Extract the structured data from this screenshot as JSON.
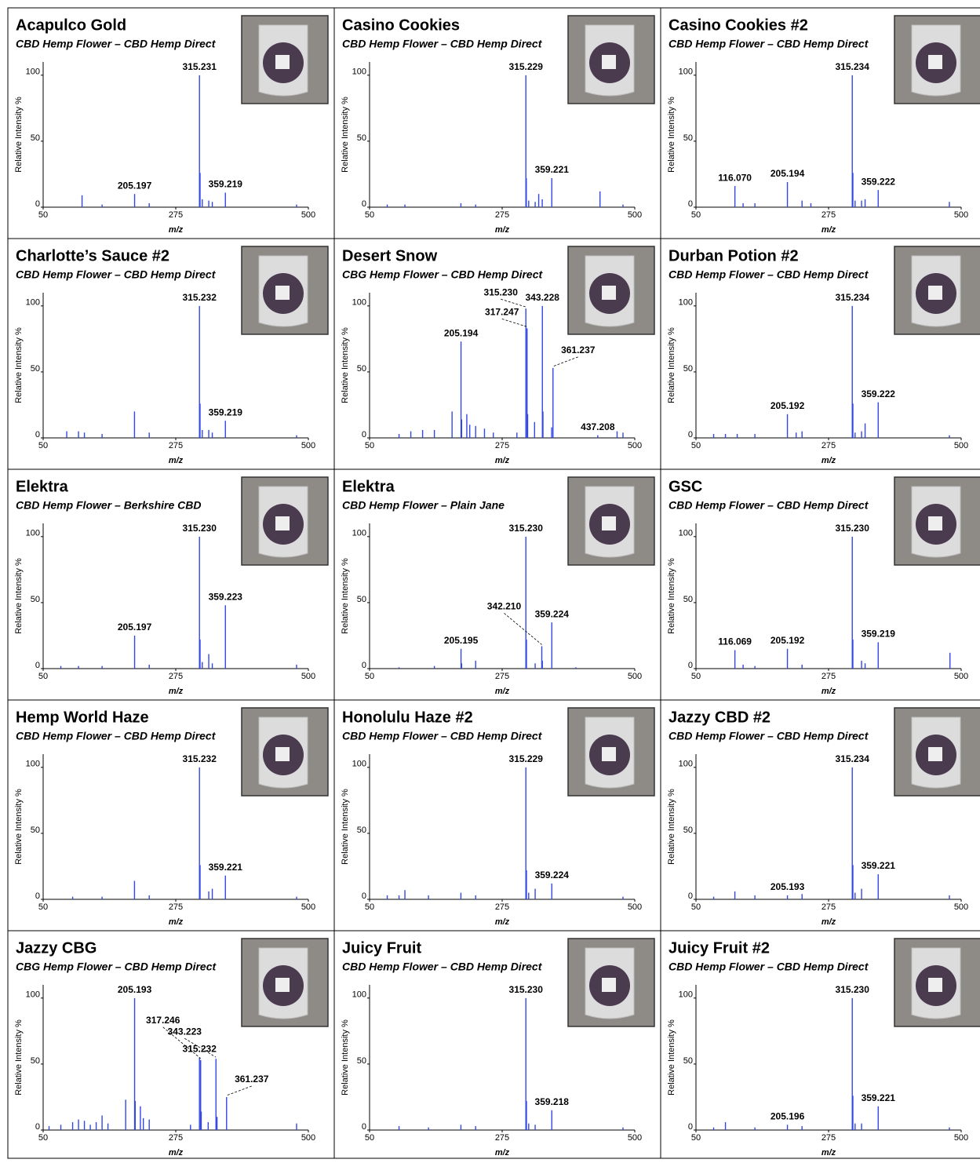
{
  "chart_data": [
    {
      "type": "stem",
      "title": "Acapulco Gold",
      "subtitle": "CBD Hemp Flower – CBD Hemp Direct",
      "xlabel": "m/z",
      "ylabel": "Relative Intensity %",
      "color": "#3347e6",
      "xlim": [
        50,
        500
      ],
      "ylim": [
        0,
        110
      ],
      "xticks": [
        50,
        275,
        500
      ],
      "yticks": [
        0,
        50,
        100
      ],
      "x": [
        116,
        150,
        205.197,
        230,
        315.231,
        316.234,
        320,
        331,
        337,
        359.219,
        480
      ],
      "values": [
        9,
        2,
        10,
        3,
        100,
        26,
        6,
        5,
        4,
        11,
        2
      ],
      "peak_labels": [
        null,
        null,
        "205.197",
        null,
        "315.231",
        null,
        null,
        null,
        null,
        "359.219",
        null
      ]
    },
    {
      "type": "stem",
      "title": "Casino Cookies",
      "subtitle": "CBD Hemp Flower – CBD Hemp Direct",
      "xlabel": "m/z",
      "ylabel": "Relative Intensity %",
      "color": "#3347e6",
      "xlim": [
        50,
        500
      ],
      "ylim": [
        0,
        110
      ],
      "xticks": [
        50,
        275,
        500
      ],
      "yticks": [
        0,
        50,
        100
      ],
      "x": [
        80,
        110,
        205,
        230,
        315.229,
        316,
        320,
        331,
        337,
        343,
        359.221,
        441,
        480
      ],
      "values": [
        2,
        2,
        3,
        2,
        100,
        22,
        5,
        4,
        10,
        6,
        22,
        12,
        2
      ],
      "peak_labels": [
        null,
        null,
        null,
        null,
        "315.229",
        null,
        null,
        null,
        null,
        null,
        "359.221",
        null,
        null
      ]
    },
    {
      "type": "stem",
      "title": "Casino Cookies #2",
      "subtitle": "CBD Hemp Flower – CBD Hemp Direct",
      "xlabel": "m/z",
      "ylabel": "Relative Intensity %",
      "color": "#3347e6",
      "xlim": [
        50,
        500
      ],
      "ylim": [
        0,
        110
      ],
      "xticks": [
        50,
        275,
        500
      ],
      "yticks": [
        0,
        50,
        100
      ],
      "x": [
        116.07,
        130,
        150,
        205.194,
        230,
        245,
        315.234,
        316.24,
        320,
        331,
        337,
        359.222,
        480
      ],
      "values": [
        16,
        3,
        3,
        19,
        5,
        3,
        100,
        26,
        5,
        5,
        6,
        13,
        4
      ],
      "peak_labels": [
        "116.070",
        null,
        null,
        "205.194",
        null,
        null,
        "315.234",
        null,
        null,
        null,
        null,
        "359.222",
        null
      ]
    },
    {
      "type": "stem",
      "title": "Charlotte’s Sauce #2",
      "subtitle": "CBD Hemp Flower – CBD Hemp Direct",
      "xlabel": "m/z",
      "ylabel": "Relative Intensity %",
      "color": "#3347e6",
      "xlim": [
        50,
        500
      ],
      "ylim": [
        0,
        110
      ],
      "xticks": [
        50,
        275,
        500
      ],
      "yticks": [
        0,
        50,
        100
      ],
      "x": [
        90,
        110,
        120,
        150,
        205,
        230,
        315.232,
        316.2,
        320,
        331,
        337,
        359.219,
        480
      ],
      "values": [
        5,
        5,
        4,
        3,
        20,
        4,
        100,
        26,
        6,
        6,
        4,
        13,
        2
      ],
      "peak_labels": [
        null,
        null,
        null,
        null,
        null,
        null,
        "315.232",
        null,
        null,
        null,
        null,
        "359.219",
        null
      ]
    },
    {
      "type": "stem",
      "title": "Desert Snow",
      "subtitle": "CBG Hemp Flower – CBD Hemp Direct",
      "xlabel": "m/z",
      "ylabel": "Relative Intensity %",
      "color": "#3347e6",
      "xlim": [
        50,
        500
      ],
      "ylim": [
        0,
        110
      ],
      "xticks": [
        50,
        275,
        500
      ],
      "yticks": [
        0,
        50,
        100
      ],
      "x": [
        100,
        120,
        140,
        160,
        190,
        205.194,
        206.2,
        215,
        220,
        230,
        245,
        260,
        300,
        315.23,
        317.247,
        318.25,
        330,
        343.228,
        344.23,
        359,
        361.237,
        437.208,
        470,
        480
      ],
      "values": [
        3,
        5,
        6,
        6,
        20,
        73,
        14,
        18,
        10,
        9,
        7,
        4,
        4,
        98,
        83,
        18,
        12,
        100,
        20,
        8,
        53,
        2,
        5,
        4
      ],
      "peak_labels": [
        null,
        null,
        null,
        null,
        null,
        "205.194",
        null,
        null,
        null,
        null,
        null,
        null,
        null,
        "315.230",
        "317.247",
        null,
        null,
        "343.228",
        null,
        null,
        "361.237",
        "437.208",
        null,
        null
      ]
    },
    {
      "type": "stem",
      "title": "Durban Potion #2",
      "subtitle": "CBD Hemp Flower – CBD Hemp Direct",
      "xlabel": "m/z",
      "ylabel": "Relative Intensity %",
      "color": "#3347e6",
      "xlim": [
        50,
        500
      ],
      "ylim": [
        0,
        110
      ],
      "xticks": [
        50,
        275,
        500
      ],
      "yticks": [
        0,
        50,
        100
      ],
      "x": [
        80,
        100,
        120,
        150,
        205.192,
        220,
        230,
        315.234,
        316.24,
        320,
        331,
        337,
        359.222,
        480
      ],
      "values": [
        3,
        3,
        3,
        3,
        18,
        4,
        5,
        100,
        26,
        4,
        5,
        11,
        27,
        2
      ],
      "peak_labels": [
        null,
        null,
        null,
        null,
        "205.192",
        null,
        null,
        "315.234",
        null,
        null,
        null,
        null,
        "359.222",
        null
      ]
    },
    {
      "type": "stem",
      "title": "Elektra",
      "subtitle": "CBD Hemp Flower – Berkshire CBD",
      "xlabel": "m/z",
      "ylabel": "Relative Intensity %",
      "color": "#3347e6",
      "xlim": [
        50,
        500
      ],
      "ylim": [
        0,
        110
      ],
      "xticks": [
        50,
        275,
        500
      ],
      "yticks": [
        0,
        50,
        100
      ],
      "x": [
        80,
        110,
        150,
        205.197,
        230,
        315.23,
        316.23,
        320,
        331,
        337,
        359.223,
        480
      ],
      "values": [
        2,
        2,
        2,
        25,
        3,
        100,
        22,
        5,
        11,
        4,
        48,
        3
      ],
      "peak_labels": [
        null,
        null,
        null,
        "205.197",
        null,
        "315.230",
        null,
        null,
        null,
        null,
        "359.223",
        null
      ]
    },
    {
      "type": "stem",
      "title": "Elektra",
      "subtitle": "CBD Hemp Flower – Plain Jane",
      "xlabel": "m/z",
      "ylabel": "Relative Intensity %",
      "color": "#3347e6",
      "xlim": [
        50,
        500
      ],
      "ylim": [
        0,
        110
      ],
      "xticks": [
        50,
        275,
        500
      ],
      "yticks": [
        0,
        50,
        100
      ],
      "x": [
        100,
        160,
        205.195,
        206.2,
        230,
        315.23,
        316.23,
        331,
        342.21,
        343.2,
        359.224,
        400
      ],
      "values": [
        1,
        2,
        15,
        4,
        6,
        100,
        22,
        4,
        17,
        6,
        35,
        1
      ],
      "peak_labels": [
        null,
        null,
        "205.195",
        null,
        null,
        "315.230",
        null,
        null,
        "342.210",
        null,
        "359.224",
        null
      ]
    },
    {
      "type": "stem",
      "title": "GSC",
      "subtitle": "CBD Hemp Flower – CBD Hemp Direct",
      "xlabel": "m/z",
      "ylabel": "Relative Intensity %",
      "color": "#3347e6",
      "xlim": [
        50,
        500
      ],
      "ylim": [
        0,
        110
      ],
      "xticks": [
        50,
        275,
        500
      ],
      "yticks": [
        0,
        50,
        100
      ],
      "x": [
        116.069,
        130,
        150,
        205.192,
        230,
        315.23,
        316.23,
        331,
        337,
        359.219,
        481
      ],
      "values": [
        14,
        3,
        2,
        15,
        3,
        100,
        22,
        6,
        4,
        20,
        12
      ],
      "peak_labels": [
        "116.069",
        null,
        null,
        "205.192",
        null,
        "315.230",
        null,
        null,
        null,
        "359.219",
        null
      ]
    },
    {
      "type": "stem",
      "title": "Hemp World Haze",
      "subtitle": "CBD Hemp Flower – CBD Hemp Direct",
      "xlabel": "m/z",
      "ylabel": "Relative Intensity %",
      "color": "#3347e6",
      "xlim": [
        50,
        500
      ],
      "ylim": [
        0,
        110
      ],
      "xticks": [
        50,
        275,
        500
      ],
      "yticks": [
        0,
        50,
        100
      ],
      "x": [
        100,
        150,
        205,
        230,
        315.232,
        316.24,
        331,
        337,
        359.221,
        480
      ],
      "values": [
        2,
        2,
        14,
        3,
        100,
        26,
        6,
        8,
        18,
        2
      ],
      "peak_labels": [
        null,
        null,
        null,
        null,
        "315.232",
        null,
        null,
        null,
        "359.221",
        null
      ]
    },
    {
      "type": "stem",
      "title": "Honolulu Haze #2",
      "subtitle": "CBD Hemp Flower – CBD Hemp Direct",
      "xlabel": "m/z",
      "ylabel": "Relative Intensity %",
      "color": "#3347e6",
      "xlim": [
        50,
        500
      ],
      "ylim": [
        0,
        110
      ],
      "xticks": [
        50,
        275,
        500
      ],
      "yticks": [
        0,
        50,
        100
      ],
      "x": [
        80,
        100,
        110,
        150,
        205,
        230,
        315.229,
        316.23,
        320,
        331,
        359.224,
        480
      ],
      "values": [
        3,
        3,
        7,
        3,
        5,
        3,
        100,
        22,
        5,
        8,
        12,
        2
      ],
      "peak_labels": [
        null,
        null,
        null,
        null,
        null,
        null,
        "315.229",
        null,
        null,
        null,
        "359.224",
        null
      ]
    },
    {
      "type": "stem",
      "title": "Jazzy CBD #2",
      "subtitle": "CBD Hemp Flower – CBD Hemp Direct",
      "xlabel": "m/z",
      "ylabel": "Relative Intensity %",
      "color": "#3347e6",
      "xlim": [
        50,
        500
      ],
      "ylim": [
        0,
        110
      ],
      "xticks": [
        50,
        275,
        500
      ],
      "yticks": [
        0,
        50,
        100
      ],
      "x": [
        80,
        116,
        150,
        205.193,
        230,
        315.234,
        316.24,
        320,
        331,
        359.221,
        480
      ],
      "values": [
        2,
        6,
        3,
        3,
        4,
        100,
        26,
        5,
        8,
        19,
        3
      ],
      "peak_labels": [
        null,
        null,
        null,
        "205.193",
        null,
        "315.234",
        null,
        null,
        null,
        "359.221",
        null
      ]
    },
    {
      "type": "stem",
      "title": "Jazzy CBG",
      "subtitle": "CBG Hemp Flower – CBD Hemp Direct",
      "xlabel": "m/z",
      "ylabel": "Relative Intensity %",
      "color": "#3347e6",
      "xlim": [
        50,
        500
      ],
      "ylim": [
        0,
        110
      ],
      "xticks": [
        50,
        275,
        500
      ],
      "yticks": [
        0,
        50,
        100
      ],
      "x": [
        60,
        80,
        100,
        110,
        120,
        130,
        140,
        150,
        160,
        190,
        205.193,
        206.2,
        215,
        220,
        230,
        300,
        315.232,
        317.246,
        318.2,
        330,
        343.223,
        345,
        361.237,
        480
      ],
      "values": [
        3,
        4,
        6,
        8,
        7,
        4,
        6,
        11,
        5,
        23,
        100,
        22,
        18,
        9,
        8,
        4,
        55,
        53,
        14,
        6,
        54,
        10,
        25,
        5
      ],
      "peak_labels": [
        null,
        null,
        null,
        null,
        null,
        null,
        null,
        null,
        null,
        null,
        "205.193",
        null,
        null,
        null,
        null,
        null,
        "315.232",
        "317.246",
        null,
        null,
        "343.223",
        null,
        "361.237",
        null
      ]
    },
    {
      "type": "stem",
      "title": "Juicy Fruit",
      "subtitle": "CBD Hemp Flower – CBD Hemp Direct",
      "xlabel": "m/z",
      "ylabel": "Relative Intensity %",
      "color": "#3347e6",
      "xlim": [
        50,
        500
      ],
      "ylim": [
        0,
        110
      ],
      "xticks": [
        50,
        275,
        500
      ],
      "yticks": [
        0,
        50,
        100
      ],
      "x": [
        100,
        150,
        205,
        230,
        315.23,
        316.23,
        320,
        331,
        359.218,
        480
      ],
      "values": [
        3,
        2,
        4,
        3,
        100,
        22,
        5,
        4,
        15,
        2
      ],
      "peak_labels": [
        null,
        null,
        null,
        null,
        "315.230",
        null,
        null,
        null,
        "359.218",
        null
      ]
    },
    {
      "type": "stem",
      "title": "Juicy Fruit #2",
      "subtitle": "CBD Hemp Flower – CBD Hemp Direct",
      "xlabel": "m/z",
      "ylabel": "Relative Intensity %",
      "color": "#3347e6",
      "xlim": [
        50,
        500
      ],
      "ylim": [
        0,
        110
      ],
      "xticks": [
        50,
        275,
        500
      ],
      "yticks": [
        0,
        50,
        100
      ],
      "x": [
        80,
        100,
        150,
        205.196,
        230,
        315.23,
        316.23,
        320,
        331,
        359.221,
        480
      ],
      "values": [
        2,
        6,
        2,
        4,
        3,
        100,
        26,
        5,
        5,
        18,
        2
      ],
      "peak_labels": [
        null,
        null,
        null,
        "205.196",
        null,
        "315.230",
        null,
        null,
        null,
        "359.221",
        null
      ]
    }
  ]
}
